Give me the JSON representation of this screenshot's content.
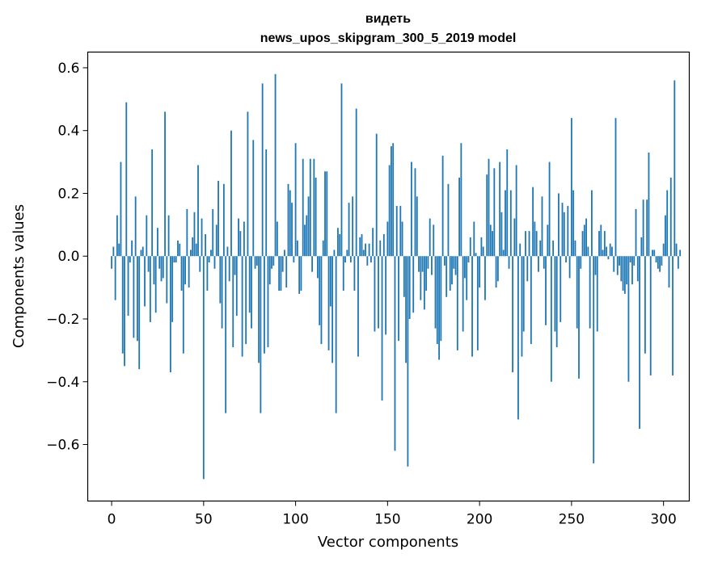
{
  "chart_data": {
    "type": "bar",
    "title": "видеть",
    "subtitle": "news_upos_skipgram_300_5_2019 model",
    "xlabel": "Vector components",
    "ylabel": "Components values",
    "xlim": [
      -13,
      314
    ],
    "ylim": [
      -0.78,
      0.65
    ],
    "xticks": [
      "0",
      "50",
      "100",
      "150",
      "200",
      "250",
      "300"
    ],
    "yticks": [
      "−0.6",
      "−0.4",
      "−0.2",
      "0.0",
      "0.2",
      "0.4",
      "0.6"
    ],
    "grid": false,
    "bar_color": "#1f77b4",
    "values": [
      -0.04,
      0.03,
      -0.14,
      0.13,
      0.04,
      0.3,
      -0.31,
      -0.35,
      0.49,
      -0.19,
      -0.02,
      0.05,
      -0.26,
      0.19,
      -0.27,
      -0.36,
      0.02,
      0.03,
      -0.16,
      0.13,
      -0.05,
      -0.21,
      0.34,
      -0.09,
      -0.18,
      0.09,
      -0.04,
      -0.08,
      -0.07,
      0.46,
      -0.15,
      0.13,
      -0.37,
      -0.21,
      -0.02,
      -0.02,
      0.05,
      0.04,
      -0.11,
      -0.31,
      -0.09,
      0.15,
      -0.1,
      0.02,
      0.06,
      0.14,
      0.04,
      0.29,
      -0.05,
      0.12,
      -0.71,
      0.07,
      -0.11,
      -0.02,
      0.02,
      0.15,
      -0.04,
      0.1,
      0.24,
      -0.15,
      -0.23,
      0.23,
      -0.5,
      0.03,
      -0.08,
      0.4,
      -0.29,
      -0.06,
      -0.19,
      0.12,
      0.08,
      -0.32,
      0.11,
      -0.28,
      0.46,
      -0.18,
      -0.23,
      0.37,
      -0.04,
      -0.03,
      -0.34,
      -0.5,
      0.55,
      -0.31,
      0.34,
      -0.29,
      -0.09,
      -0.04,
      -0.03,
      0.58,
      0.11,
      -0.11,
      -0.11,
      -0.05,
      0.02,
      -0.1,
      0.23,
      0.21,
      0.17,
      -0.02,
      0.36,
      0.05,
      -0.12,
      -0.11,
      0.31,
      0.1,
      0.13,
      0.19,
      0.31,
      -0.05,
      0.31,
      0.25,
      -0.07,
      -0.22,
      -0.28,
      0.05,
      0.27,
      0.27,
      -0.3,
      -0.16,
      -0.34,
      0.02,
      -0.5,
      0.09,
      0.07,
      0.55,
      -0.11,
      -0.02,
      0.02,
      0.17,
      -0.02,
      0.19,
      -0.11,
      0.47,
      -0.32,
      0.06,
      0.07,
      0.02,
      0.04,
      -0.03,
      0.04,
      -0.02,
      0.09,
      -0.24,
      0.39,
      -0.23,
      0.05,
      -0.46,
      0.07,
      -0.25,
      0.11,
      0.29,
      0.35,
      0.36,
      -0.62,
      0.16,
      -0.27,
      0.16,
      0.11,
      -0.13,
      -0.34,
      -0.67,
      -0.2,
      0.3,
      -0.18,
      0.28,
      0.19,
      -0.05,
      -0.14,
      -0.05,
      -0.17,
      -0.11,
      -0.04,
      0.12,
      -0.06,
      0.1,
      -0.23,
      -0.28,
      -0.33,
      -0.27,
      0.32,
      -0.03,
      -0.13,
      0.23,
      -0.11,
      -0.09,
      -0.04,
      -0.06,
      -0.3,
      0.25,
      0.36,
      -0.24,
      -0.07,
      -0.14,
      -0.02,
      0.06,
      -0.32,
      0.11,
      0.01,
      -0.3,
      -0.1,
      0.06,
      0.03,
      -0.14,
      0.26,
      0.31,
      0.1,
      0.08,
      0.28,
      -0.1,
      -0.08,
      0.3,
      0.14,
      0.02,
      0.21,
      0.34,
      -0.04,
      0.21,
      -0.37,
      0.12,
      0.29,
      -0.52,
      0.04,
      -0.32,
      -0.24,
      0.08,
      -0.08,
      0.08,
      -0.28,
      0.22,
      0.11,
      0.08,
      -0.05,
      0.05,
      0.19,
      -0.04,
      -0.22,
      0.1,
      0.3,
      -0.4,
      0.05,
      -0.24,
      -0.29,
      0.2,
      -0.21,
      0.17,
      0.14,
      -0.02,
      0.16,
      -0.07,
      0.44,
      0.21,
      0.05,
      -0.23,
      -0.39,
      -0.04,
      0.08,
      0.1,
      0.12,
      0.03,
      -0.23,
      0.21,
      -0.66,
      -0.06,
      -0.24,
      0.08,
      0.1,
      0.02,
      0.08,
      0.03,
      -0.01,
      0.04,
      0.03,
      -0.05,
      0.44,
      -0.06,
      -0.03,
      -0.08,
      -0.11,
      -0.12,
      -0.09,
      -0.4,
      -0.02,
      -0.09,
      -0.03,
      0.15,
      -0.08,
      -0.55,
      0.06,
      0.18,
      -0.31,
      0.18,
      0.33,
      -0.38,
      0.02,
      0.02,
      -0.02,
      -0.04,
      -0.05,
      -0.03,
      0.04,
      0.13,
      0.21,
      -0.1,
      0.25,
      -0.38,
      0.56,
      0.04,
      -0.04,
      0.02
    ]
  }
}
